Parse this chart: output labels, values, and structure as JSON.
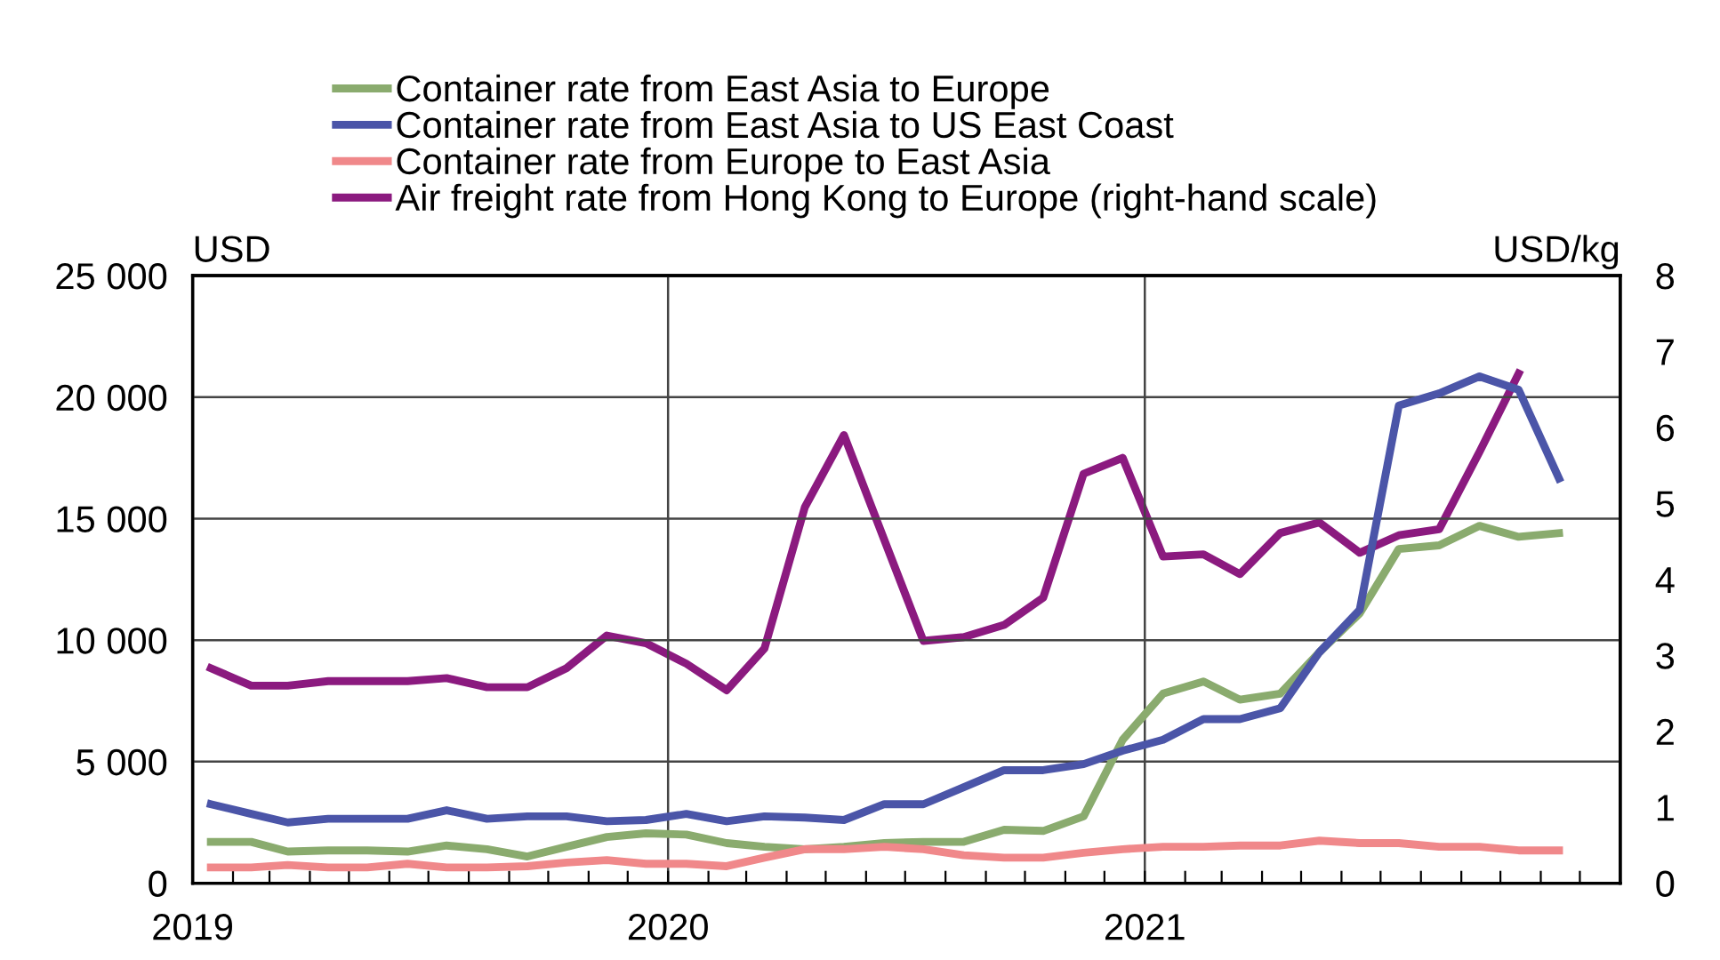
{
  "chart_data": {
    "type": "line",
    "ylabel": "USD",
    "y2label": "USD/kg",
    "legend": "top left",
    "grid": true,
    "marker": "none",
    "line_style": "solid",
    "x": [
      "2019-01-15",
      "2019-02-15",
      "2019-03-15",
      "2019-04-15",
      "2019-05-15",
      "2019-06-15",
      "2019-07-15",
      "2019-08-15",
      "2019-09-15",
      "2019-10-15",
      "2019-11-15",
      "2019-12-15",
      "2020-01-15",
      "2020-02-15",
      "2020-03-15",
      "2020-04-15",
      "2020-05-15",
      "2020-06-15",
      "2020-07-15",
      "2020-08-15",
      "2020-09-15",
      "2020-10-15",
      "2020-11-15",
      "2020-12-15",
      "2021-01-15",
      "2021-02-15",
      "2021-03-15",
      "2021-04-15",
      "2021-05-15",
      "2021-06-15",
      "2021-07-15",
      "2021-08-15",
      "2021-09-15",
      "2021-10-15",
      "2021-11-15"
    ],
    "series": [
      {
        "name": "Container rate from East Asia to Europe",
        "color": "#8aab6e",
        "values": [
          1700,
          1700,
          1300,
          1350,
          1350,
          1300,
          1550,
          1400,
          1100,
          1500,
          1900,
          2050,
          2000,
          1650,
          1500,
          1400,
          1500,
          1650,
          1700,
          1700,
          2200,
          2150,
          2750,
          5900,
          7800,
          8300,
          7550,
          7800,
          9500,
          11100,
          13750,
          13900,
          14700,
          14250,
          14400
        ]
      },
      {
        "name": "Container rate from East Asia to US East Coast",
        "color": "#4b55a8",
        "values": [
          3250,
          2850,
          2500,
          2650,
          2650,
          2650,
          3000,
          2650,
          2750,
          2750,
          2550,
          2600,
          2850,
          2550,
          2750,
          2700,
          2600,
          3250,
          3250,
          3950,
          4650,
          4650,
          4900,
          5450,
          5900,
          6750,
          6750,
          7200,
          9500,
          11250,
          19650,
          20150,
          20850,
          20300,
          16650
        ]
      },
      {
        "name": "Container rate from Europe to East Asia",
        "color": "#f0888a",
        "values": [
          650,
          650,
          750,
          650,
          650,
          800,
          650,
          650,
          700,
          850,
          950,
          800,
          800,
          700,
          1050,
          1400,
          1400,
          1500,
          1400,
          1150,
          1050,
          1050,
          1250,
          1400,
          1500,
          1500,
          1550,
          1550,
          1750,
          1650,
          1650,
          1500,
          1500,
          1350,
          1350
        ]
      },
      {
        "name": "Air freight rate from Hong Kong to Europe (right-hand scale)",
        "color": "#8b1a7f",
        "axis": "y2",
        "values": [
          2.83,
          2.6,
          2.6,
          2.66,
          2.66,
          2.66,
          2.7,
          2.58,
          2.58,
          2.83,
          3.26,
          3.16,
          2.89,
          2.54,
          3.09,
          4.95,
          5.9,
          4.52,
          3.19,
          3.24,
          3.4,
          3.76,
          5.39,
          5.6,
          4.3,
          4.33,
          4.07,
          4.61,
          4.75,
          4.35,
          4.58,
          4.66,
          5.68,
          6.71,
          null
        ]
      }
    ],
    "xlim": [
      "2019-01-01",
      "2022-01-01"
    ],
    "xticks": [
      {
        "value": "2019-01-01",
        "label": "2019"
      },
      {
        "value": "2019-02-01",
        "label": null
      },
      {
        "value": "2019-03-01",
        "label": null
      },
      {
        "value": "2019-04-01",
        "label": null
      },
      {
        "value": "2019-05-01",
        "label": null
      },
      {
        "value": "2019-06-01",
        "label": null
      },
      {
        "value": "2019-07-01",
        "label": null
      },
      {
        "value": "2019-08-01",
        "label": null
      },
      {
        "value": "2019-09-01",
        "label": null
      },
      {
        "value": "2019-10-01",
        "label": null
      },
      {
        "value": "2019-11-01",
        "label": null
      },
      {
        "value": "2019-12-01",
        "label": null
      },
      {
        "value": "2020-01-01",
        "label": "2020"
      },
      {
        "value": "2020-02-01",
        "label": null
      },
      {
        "value": "2020-03-01",
        "label": null
      },
      {
        "value": "2020-04-01",
        "label": null
      },
      {
        "value": "2020-05-01",
        "label": null
      },
      {
        "value": "2020-06-01",
        "label": null
      },
      {
        "value": "2020-07-01",
        "label": null
      },
      {
        "value": "2020-08-01",
        "label": null
      },
      {
        "value": "2020-09-01",
        "label": null
      },
      {
        "value": "2020-10-01",
        "label": null
      },
      {
        "value": "2020-11-01",
        "label": null
      },
      {
        "value": "2020-12-01",
        "label": null
      },
      {
        "value": "2021-01-01",
        "label": "2021"
      },
      {
        "value": "2021-02-01",
        "label": null
      },
      {
        "value": "2021-03-01",
        "label": null
      },
      {
        "value": "2021-04-01",
        "label": null
      },
      {
        "value": "2021-05-01",
        "label": null
      },
      {
        "value": "2021-06-01",
        "label": null
      },
      {
        "value": "2021-07-01",
        "label": null
      },
      {
        "value": "2021-08-01",
        "label": null
      },
      {
        "value": "2021-09-01",
        "label": null
      },
      {
        "value": "2021-10-01",
        "label": null
      },
      {
        "value": "2021-11-01",
        "label": null
      },
      {
        "value": "2021-12-01",
        "label": null
      }
    ],
    "ylim": [
      0,
      25000
    ],
    "yticks": [
      0,
      {
        "value": 5000,
        "label": "5 000"
      },
      {
        "value": 10000,
        "label": "10 000"
      },
      {
        "value": 15000,
        "label": "15 000"
      },
      {
        "value": 20000,
        "label": "20 000"
      },
      {
        "value": 25000,
        "label": "25 000"
      }
    ],
    "y2lim": [
      0,
      8
    ],
    "y2ticks": [
      0,
      1,
      2,
      3,
      4,
      5,
      6,
      7,
      8
    ]
  }
}
